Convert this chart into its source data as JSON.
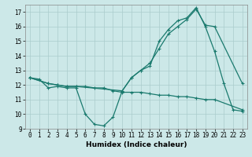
{
  "title": "",
  "xlabel": "Humidex (Indice chaleur)",
  "ylabel": "",
  "bg_color": "#cce8e8",
  "line_color": "#1a7a6e",
  "grid_color": "#aacccc",
  "xlim": [
    -0.5,
    23.5
  ],
  "ylim": [
    9,
    17.5
  ],
  "xticks": [
    0,
    1,
    2,
    3,
    4,
    5,
    6,
    7,
    8,
    9,
    10,
    11,
    12,
    13,
    14,
    15,
    16,
    17,
    18,
    19,
    20,
    21,
    22,
    23
  ],
  "yticks": [
    9,
    10,
    11,
    12,
    13,
    14,
    15,
    16,
    17
  ],
  "line1_x": [
    0,
    1,
    2,
    3,
    4,
    5,
    6,
    7,
    8,
    9,
    10,
    11,
    12,
    13,
    14,
    15,
    16,
    17,
    18,
    19,
    20,
    21,
    22,
    23
  ],
  "line1_y": [
    12.5,
    12.4,
    11.8,
    11.9,
    11.8,
    11.8,
    10.0,
    9.3,
    9.2,
    9.8,
    11.6,
    12.5,
    13.0,
    13.3,
    15.0,
    15.8,
    16.4,
    16.6,
    17.3,
    16.0,
    14.3,
    12.1,
    10.3,
    10.2
  ],
  "line2_x": [
    0,
    2,
    3,
    4,
    5,
    6,
    7,
    8,
    9,
    10,
    11,
    12,
    13,
    14,
    15,
    16,
    17,
    18,
    19,
    20,
    23
  ],
  "line2_y": [
    12.5,
    12.1,
    12.0,
    11.9,
    11.9,
    11.9,
    11.8,
    11.8,
    11.6,
    11.5,
    11.5,
    11.5,
    11.4,
    11.3,
    11.3,
    11.2,
    11.2,
    11.1,
    11.0,
    11.0,
    10.3
  ],
  "line3_x": [
    0,
    2,
    3,
    4,
    5,
    10,
    11,
    12,
    13,
    14,
    15,
    16,
    17,
    18,
    19,
    20,
    23
  ],
  "line3_y": [
    12.5,
    12.1,
    12.0,
    11.9,
    11.9,
    11.6,
    12.5,
    13.0,
    13.5,
    14.5,
    15.5,
    16.0,
    16.5,
    17.2,
    16.1,
    16.0,
    12.1
  ],
  "marker": "+",
  "markersize": 3,
  "linewidth": 0.9,
  "tick_fontsize": 5.5,
  "xlabel_fontsize": 6.5
}
